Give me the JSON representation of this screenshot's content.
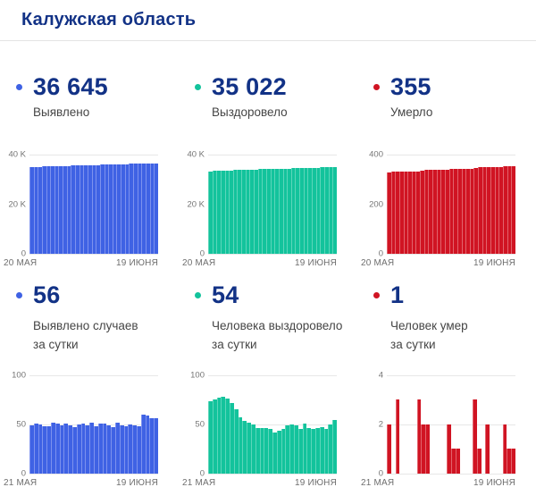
{
  "page": {
    "title": "Калужская область"
  },
  "colors": {
    "accent_navy": "#123286",
    "blue": "#3f62e4",
    "blue_light": "#7d92ee",
    "teal": "#13c39c",
    "teal_light": "#5cd6ba",
    "red": "#d01423",
    "red_light": "#e2636c",
    "grid": "#e7e7e7",
    "axis_text": "#757575",
    "label_text": "#454545"
  },
  "stats": [
    {
      "id": "confirmed_total",
      "value": "36 645",
      "label": "Выявлено",
      "color": "blue"
    },
    {
      "id": "recovered_total",
      "value": "35 022",
      "label": "Выздоровело",
      "color": "teal"
    },
    {
      "id": "deaths_total",
      "value": "355",
      "label": "Умерло",
      "color": "red"
    },
    {
      "id": "confirmed_daily",
      "value": "56",
      "label": "Выявлено случаев",
      "label2": "за сутки",
      "color": "blue"
    },
    {
      "id": "recovered_daily",
      "value": "54",
      "label": "Человека выздоровело",
      "label2": "за сутки",
      "color": "teal"
    },
    {
      "id": "deaths_daily",
      "value": "1",
      "label": "Человек умер",
      "label2": "за сутки",
      "color": "red"
    }
  ],
  "chart_data": [
    {
      "id": "confirmed_total_chart",
      "type": "bar",
      "name": "Выявлено",
      "color": "blue",
      "ylim": [
        0,
        40000
      ],
      "yticks": [
        "40 K",
        "20 K",
        "0"
      ],
      "grid": true,
      "xlabels": [
        "20 МАЯ",
        "19 ИЮНЯ"
      ],
      "values": [
        35125,
        35174,
        35225,
        35275,
        35323,
        35371,
        35423,
        35474,
        35523,
        35574,
        35623,
        35670,
        35720,
        35771,
        35820,
        35872,
        35920,
        35971,
        36022,
        36071,
        36118,
        36170,
        36219,
        36267,
        36317,
        36366,
        36414,
        36474,
        36533,
        36589,
        36645
      ]
    },
    {
      "id": "recovered_total_chart",
      "type": "bar",
      "name": "Выздоровело",
      "color": "teal",
      "ylim": [
        0,
        40000
      ],
      "yticks": [
        "40 K",
        "20 K",
        "0"
      ],
      "grid": true,
      "xlabels": [
        "20 МАЯ",
        "19 ИЮНЯ"
      ],
      "values": [
        33404,
        33477,
        33552,
        33629,
        33707,
        33783,
        33855,
        33920,
        33977,
        34030,
        34082,
        34132,
        34178,
        34224,
        34270,
        34315,
        34357,
        34400,
        34445,
        34494,
        34544,
        34593,
        34638,
        34689,
        34735,
        34780,
        34826,
        34873,
        34918,
        34968,
        35022
      ]
    },
    {
      "id": "deaths_total_chart",
      "type": "bar",
      "name": "Умерло",
      "color": "red",
      "ylim": [
        0,
        400
      ],
      "yticks": [
        "400",
        "200",
        "0"
      ],
      "grid": true,
      "xlabels": [
        "20 МАЯ",
        "19 ИЮНЯ"
      ],
      "values": [
        329,
        331,
        331,
        334,
        334,
        334,
        334,
        334,
        337,
        339,
        341,
        341,
        341,
        341,
        341,
        343,
        344,
        345,
        345,
        345,
        345,
        348,
        349,
        349,
        351,
        351,
        351,
        351,
        353,
        354,
        355
      ]
    },
    {
      "id": "confirmed_daily_chart",
      "type": "bar",
      "name": "Выявлено случаев за сутки",
      "color": "blue",
      "ylim": [
        0,
        100
      ],
      "yticks": [
        "100",
        "50",
        "0"
      ],
      "grid": true,
      "xlabels": [
        "21 МАЯ",
        "19 ИЮНЯ"
      ],
      "values": [
        49,
        51,
        50,
        48,
        48,
        52,
        51,
        49,
        51,
        49,
        47,
        50,
        51,
        49,
        52,
        48,
        51,
        51,
        49,
        47,
        52,
        49,
        48,
        50,
        49,
        48,
        60,
        59,
        56,
        56
      ]
    },
    {
      "id": "recovered_daily_chart",
      "type": "bar",
      "name": "Человека выздоровело за сутки",
      "color": "teal",
      "ylim": [
        0,
        100
      ],
      "yticks": [
        "100",
        "50",
        "0"
      ],
      "grid": true,
      "xlabels": [
        "21 МАЯ",
        "19 ИЮНЯ"
      ],
      "values": [
        73,
        75,
        77,
        78,
        76,
        72,
        65,
        57,
        53,
        52,
        50,
        46,
        46,
        46,
        45,
        42,
        43,
        45,
        49,
        50,
        49,
        45,
        51,
        46,
        45,
        46,
        47,
        45,
        50,
        54
      ]
    },
    {
      "id": "deaths_daily_chart",
      "type": "bar",
      "name": "Человек умер за сутки",
      "color": "red",
      "ylim": [
        0,
        4
      ],
      "yticks": [
        "4",
        "2",
        "0"
      ],
      "grid": true,
      "xlabels": [
        "21 МАЯ",
        "19 ИЮНЯ"
      ],
      "values": [
        2,
        0,
        3,
        0,
        0,
        0,
        0,
        3,
        2,
        2,
        0,
        0,
        0,
        0,
        2,
        1,
        1,
        0,
        0,
        0,
        3,
        1,
        0,
        2,
        0,
        0,
        0,
        2,
        1,
        1
      ]
    }
  ]
}
